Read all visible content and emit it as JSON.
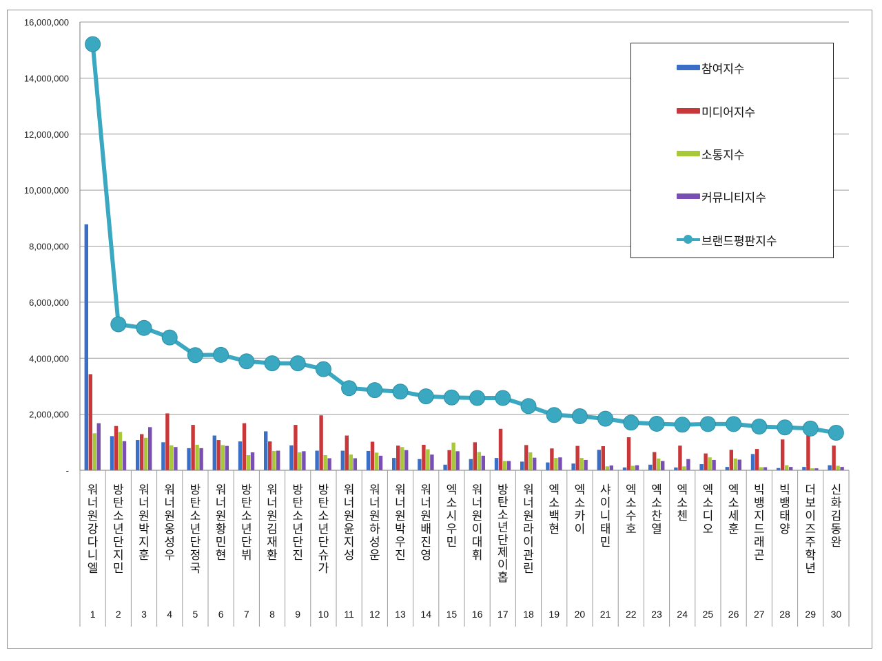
{
  "chart_data": {
    "type": "bar",
    "title": "",
    "xlabel": "",
    "ylabel": "",
    "ylim": [
      0,
      16000000
    ],
    "y_ticks": [
      "-",
      "2,000,000",
      "4,000,000",
      "6,000,000",
      "8,000,000",
      "10,000,000",
      "12,000,000",
      "14,000,000",
      "16,000,000"
    ],
    "grid": true,
    "legend_position": "top-right",
    "categories": [
      {
        "rank": "1",
        "name": "워너원강다니엘"
      },
      {
        "rank": "2",
        "name": "방탄소년단지민"
      },
      {
        "rank": "3",
        "name": "워너원박지훈"
      },
      {
        "rank": "4",
        "name": "워너원옹성우"
      },
      {
        "rank": "5",
        "name": "방탄소년단정국"
      },
      {
        "rank": "6",
        "name": "워너원황민현"
      },
      {
        "rank": "7",
        "name": "방탄소년단뷔"
      },
      {
        "rank": "8",
        "name": "워너원김재환"
      },
      {
        "rank": "9",
        "name": "방탄소년단진"
      },
      {
        "rank": "10",
        "name": "방탄소년단슈가"
      },
      {
        "rank": "11",
        "name": "워너원윤지성"
      },
      {
        "rank": "12",
        "name": "워너원하성운"
      },
      {
        "rank": "13",
        "name": "워너원박우진"
      },
      {
        "rank": "14",
        "name": "워너원배진영"
      },
      {
        "rank": "15",
        "name": "엑소시우민"
      },
      {
        "rank": "16",
        "name": "워너원이대휘"
      },
      {
        "rank": "17",
        "name": "방탄소년단제이홉"
      },
      {
        "rank": "18",
        "name": "워너원라이관린"
      },
      {
        "rank": "19",
        "name": "엑소백현"
      },
      {
        "rank": "20",
        "name": "엑소카이"
      },
      {
        "rank": "21",
        "name": "샤이니태민"
      },
      {
        "rank": "22",
        "name": "엑소수호"
      },
      {
        "rank": "23",
        "name": "엑소찬열"
      },
      {
        "rank": "24",
        "name": "엑소첸"
      },
      {
        "rank": "25",
        "name": "엑소디오"
      },
      {
        "rank": "26",
        "name": "엑소세훈"
      },
      {
        "rank": "27",
        "name": "빅뱅지드래곤"
      },
      {
        "rank": "28",
        "name": "빅뱅태양"
      },
      {
        "rank": "29",
        "name": "더보이즈주학년"
      },
      {
        "rank": "30",
        "name": "신화김동완"
      }
    ],
    "series": [
      {
        "name": "참여지수",
        "type": "bar",
        "color": "#3b6fc5",
        "values": [
          8780000,
          1220000,
          1080000,
          1000000,
          790000,
          1240000,
          1030000,
          1390000,
          890000,
          700000,
          700000,
          690000,
          440000,
          400000,
          200000,
          400000,
          440000,
          310000,
          280000,
          240000,
          730000,
          100000,
          200000,
          100000,
          220000,
          120000,
          580000,
          80000,
          120000,
          180000
        ]
      },
      {
        "name": "미디어지수",
        "type": "bar",
        "color": "#c8383a",
        "values": [
          3430000,
          1580000,
          1290000,
          2030000,
          1620000,
          1080000,
          1680000,
          1030000,
          1620000,
          1960000,
          1240000,
          1020000,
          880000,
          910000,
          720000,
          1000000,
          1480000,
          900000,
          780000,
          870000,
          860000,
          1180000,
          650000,
          880000,
          600000,
          730000,
          760000,
          1100000,
          1410000,
          880000
        ]
      },
      {
        "name": "소통지수",
        "type": "bar",
        "color": "#a8c83a",
        "values": [
          1320000,
          1370000,
          1160000,
          890000,
          910000,
          900000,
          540000,
          690000,
          640000,
          540000,
          560000,
          630000,
          830000,
          750000,
          990000,
          650000,
          330000,
          640000,
          440000,
          440000,
          140000,
          160000,
          420000,
          140000,
          460000,
          420000,
          110000,
          180000,
          70000,
          160000
        ]
      },
      {
        "name": "커뮤니티지수",
        "type": "bar",
        "color": "#7a4fb3",
        "values": [
          1680000,
          1040000,
          1540000,
          830000,
          790000,
          870000,
          640000,
          700000,
          680000,
          430000,
          430000,
          520000,
          720000,
          560000,
          680000,
          520000,
          330000,
          450000,
          460000,
          370000,
          170000,
          180000,
          330000,
          400000,
          370000,
          380000,
          110000,
          120000,
          70000,
          120000
        ]
      },
      {
        "name": "브랜드평판지수",
        "type": "line",
        "color": "#3aa8c1",
        "values": [
          15210000,
          5210000,
          5080000,
          4740000,
          4110000,
          4120000,
          3890000,
          3820000,
          3820000,
          3610000,
          2930000,
          2860000,
          2810000,
          2640000,
          2600000,
          2580000,
          2580000,
          2290000,
          1970000,
          1930000,
          1840000,
          1700000,
          1660000,
          1630000,
          1650000,
          1650000,
          1560000,
          1530000,
          1490000,
          1340000
        ]
      }
    ]
  }
}
